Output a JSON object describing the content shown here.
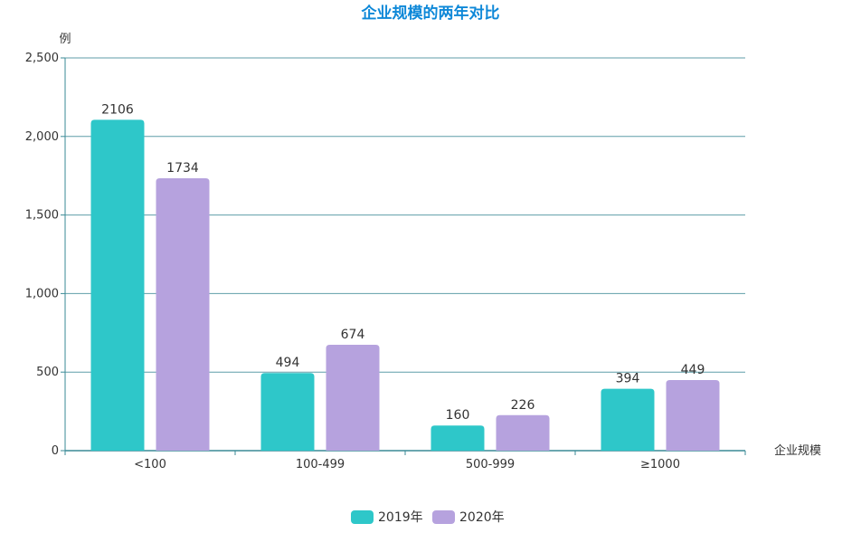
{
  "chart_data": {
    "type": "bar",
    "title": "企业规模的两年对比",
    "xlabel": "企业规模",
    "ylabel": "例",
    "categories": [
      "<100",
      "100-499",
      "500-999",
      "≥1000"
    ],
    "series": [
      {
        "name": "2019年",
        "values": [
          2106,
          494,
          160,
          394
        ],
        "color": "#2ec7c9"
      },
      {
        "name": "2020年",
        "values": [
          1734,
          674,
          226,
          449
        ],
        "color": "#b6a2de"
      }
    ],
    "ylim": [
      0,
      2500
    ],
    "yticks": [
      0,
      500,
      1000,
      1500,
      2000,
      2500
    ],
    "ytick_labels": [
      "0",
      "500",
      "1,000",
      "1,500",
      "2,000",
      "2,500"
    ],
    "grid": true,
    "legend_position": "bottom-center",
    "colors": {
      "title": "#0e88d8",
      "axis": "#3a8a96",
      "grid": "#5f9ea8",
      "text": "#333333"
    }
  }
}
